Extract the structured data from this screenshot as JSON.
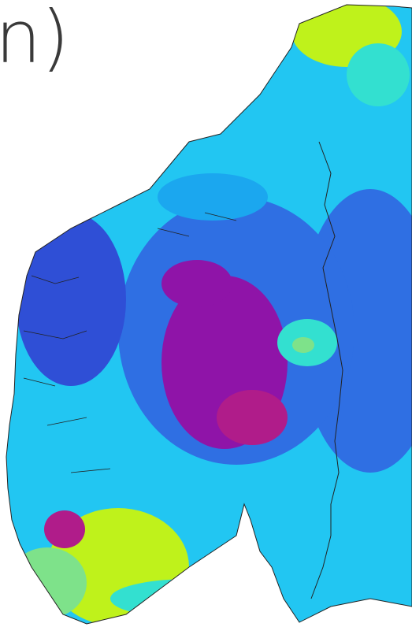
{
  "figure": {
    "visible_text": "n)",
    "background": "#ffffff"
  },
  "palette": {
    "light_green": "#bff21b",
    "green": "#7ee28a",
    "teal": "#33e0d0",
    "cyan": "#22c6f2",
    "sky": "#1ba7ef",
    "blue": "#2f6fe3",
    "deep_blue": "#2f4fd6",
    "purple": "#8f14a8",
    "magenta": "#b01c8a",
    "boundary": "#222222"
  },
  "map": {
    "region": "southern Norway",
    "layers": [
      "color-field",
      "coastline",
      "national-border"
    ]
  }
}
